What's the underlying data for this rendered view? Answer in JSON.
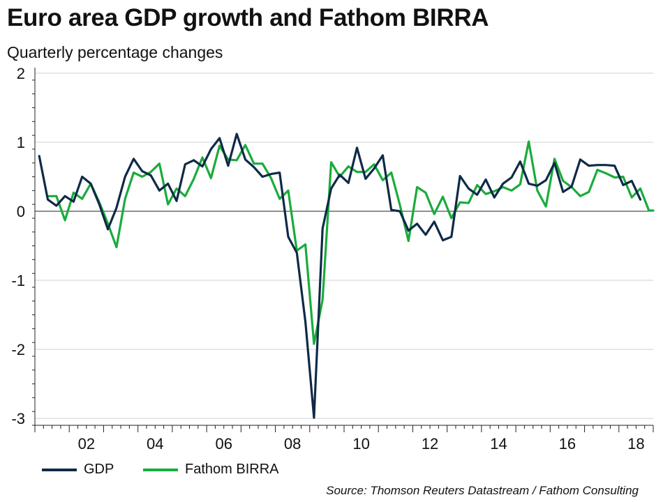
{
  "title": "Euro area GDP growth and Fathom BIRRA",
  "subtitle": "Quarterly percentage changes",
  "source": "Source: Thomson Reuters Datastream / Fathom Consulting",
  "colors": {
    "gdp": "#0f2a47",
    "birra": "#1aab3c",
    "grid": "#d0d0d0",
    "axis": "#222222"
  },
  "chart_data": {
    "type": "line",
    "title": "Euro area GDP growth and Fathom BIRRA",
    "subtitle": "Quarterly percentage changes",
    "xlabel": "",
    "ylabel": "",
    "ylim": [
      -3.1,
      2
    ],
    "xlim": [
      2001.0,
      2019.0
    ],
    "yticks": [
      2,
      1,
      0,
      -1,
      -2,
      -3
    ],
    "xticks": [
      2002,
      2004,
      2006,
      2008,
      2010,
      2012,
      2014,
      2016,
      2018
    ],
    "xtick_labels": [
      "02",
      "04",
      "06",
      "08",
      "10",
      "12",
      "14",
      "16",
      "18"
    ],
    "grid": true,
    "legend": "bottom-left",
    "series": [
      {
        "name": "GDP",
        "x": [
          2001.125,
          2001.375,
          2001.625,
          2001.875,
          2002.125,
          2002.375,
          2002.625,
          2002.875,
          2003.125,
          2003.375,
          2003.625,
          2003.875,
          2004.125,
          2004.375,
          2004.625,
          2004.875,
          2005.125,
          2005.375,
          2005.625,
          2005.875,
          2006.125,
          2006.375,
          2006.625,
          2006.875,
          2007.125,
          2007.375,
          2007.625,
          2007.875,
          2008.125,
          2008.375,
          2008.625,
          2008.875,
          2009.125,
          2009.375,
          2009.625,
          2009.875,
          2010.125,
          2010.375,
          2010.625,
          2010.875,
          2011.125,
          2011.375,
          2011.625,
          2011.875,
          2012.125,
          2012.375,
          2012.625,
          2012.875,
          2013.125,
          2013.375,
          2013.625,
          2013.875,
          2014.125,
          2014.375,
          2014.625,
          2014.875,
          2015.125,
          2015.375,
          2015.625,
          2015.875,
          2016.125,
          2016.375,
          2016.625,
          2016.875,
          2017.125,
          2017.375,
          2017.625,
          2017.875,
          2018.125,
          2018.375,
          2018.625
        ],
        "values": [
          0.8,
          0.17,
          0.08,
          0.22,
          0.14,
          0.5,
          0.4,
          0.1,
          -0.26,
          0.05,
          0.5,
          0.76,
          0.58,
          0.52,
          0.3,
          0.4,
          0.15,
          0.68,
          0.74,
          0.65,
          0.9,
          1.06,
          0.66,
          1.12,
          0.75,
          0.64,
          0.5,
          0.54,
          0.56,
          -0.37,
          -0.6,
          -1.6,
          -2.99,
          -0.25,
          0.33,
          0.53,
          0.41,
          0.92,
          0.47,
          0.62,
          0.81,
          0.02,
          0.0,
          -0.28,
          -0.18,
          -0.34,
          -0.15,
          -0.42,
          -0.37,
          0.51,
          0.33,
          0.24,
          0.46,
          0.2,
          0.4,
          0.49,
          0.72,
          0.4,
          0.37,
          0.45,
          0.7,
          0.28,
          0.36,
          0.75,
          0.66,
          0.67,
          0.67,
          0.66,
          0.38,
          0.44,
          0.17
        ]
      },
      {
        "name": "Fathom BIRRA",
        "x": [
          2001.375,
          2001.625,
          2001.875,
          2002.125,
          2002.375,
          2002.625,
          2002.875,
          2003.125,
          2003.375,
          2003.625,
          2003.875,
          2004.125,
          2004.375,
          2004.625,
          2004.875,
          2005.125,
          2005.375,
          2005.625,
          2005.875,
          2006.125,
          2006.375,
          2006.625,
          2006.875,
          2007.125,
          2007.375,
          2007.625,
          2007.875,
          2008.125,
          2008.375,
          2008.625,
          2008.875,
          2009.125,
          2009.375,
          2009.625,
          2009.875,
          2010.125,
          2010.375,
          2010.625,
          2010.875,
          2011.125,
          2011.375,
          2011.625,
          2011.875,
          2012.125,
          2012.375,
          2012.625,
          2012.875,
          2013.125,
          2013.375,
          2013.625,
          2013.875,
          2014.125,
          2014.375,
          2014.625,
          2014.875,
          2015.125,
          2015.375,
          2015.625,
          2015.875,
          2016.125,
          2016.375,
          2016.625,
          2016.875,
          2017.125,
          2017.375,
          2017.625,
          2017.875,
          2018.125,
          2018.375,
          2018.625,
          2018.875,
          2019.0
        ],
        "values": [
          0.22,
          0.22,
          -0.13,
          0.27,
          0.18,
          0.4,
          0.13,
          -0.18,
          -0.52,
          0.18,
          0.56,
          0.5,
          0.57,
          0.69,
          0.1,
          0.33,
          0.22,
          0.47,
          0.78,
          0.48,
          0.95,
          0.75,
          0.74,
          0.96,
          0.69,
          0.69,
          0.48,
          0.18,
          0.3,
          -0.57,
          -0.48,
          -1.92,
          -1.28,
          0.71,
          0.5,
          0.65,
          0.57,
          0.57,
          0.68,
          0.45,
          0.56,
          0.09,
          -0.43,
          0.35,
          0.27,
          -0.04,
          0.21,
          -0.1,
          0.13,
          0.12,
          0.38,
          0.25,
          0.29,
          0.35,
          0.3,
          0.39,
          1.01,
          0.3,
          0.07,
          0.76,
          0.44,
          0.35,
          0.22,
          0.28,
          0.6,
          0.55,
          0.49,
          0.5,
          0.2,
          0.33,
          0.01,
          0.01
        ]
      }
    ]
  },
  "legend": [
    {
      "label": "GDP",
      "color_key": "gdp"
    },
    {
      "label": "Fathom BIRRA",
      "color_key": "birra"
    }
  ]
}
